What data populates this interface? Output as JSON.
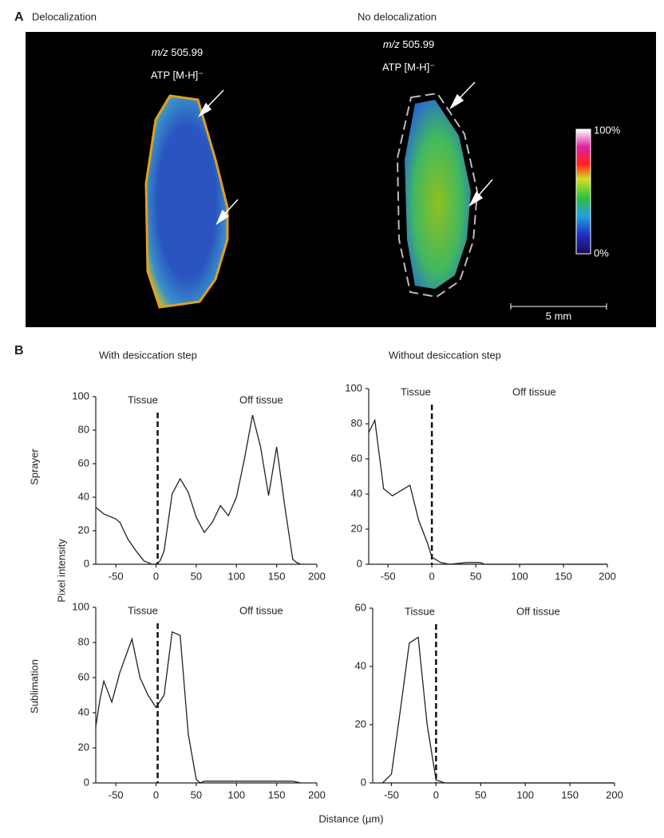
{
  "panel_a": {
    "label": "A",
    "left_title": "Delocalization",
    "right_title": "No delocalization",
    "left_ion": {
      "italic": "m/z",
      "text": "505.99",
      "species": "ATP [M-H]⁻"
    },
    "right_ion": {
      "italic": "m/z",
      "text": "505.99",
      "species": "ATP [M-H]⁻"
    },
    "colorbar": {
      "max_label": "100%",
      "min_label": "0%"
    },
    "scale_bar": "5 mm"
  },
  "panel_b": {
    "label": "B",
    "columns": [
      "With desiccation step",
      "Without desiccation step"
    ],
    "rows": [
      "Sprayer",
      "Sublimation"
    ],
    "y_label": "Pixel intensity",
    "x_label": "Distance (µm)"
  },
  "chart_data": [
    {
      "type": "line",
      "annotations": [
        "Tissue",
        "Off tissue"
      ],
      "vline": 2,
      "xlim": [
        -75,
        200
      ],
      "xticks": [
        -50,
        0,
        50,
        100,
        150,
        200
      ],
      "ylim": [
        0,
        100
      ],
      "yticks": [
        0,
        20,
        40,
        60,
        80,
        100
      ],
      "x": [
        -75,
        -65,
        -50,
        -45,
        -35,
        -25,
        -15,
        -5,
        0,
        5,
        10,
        20,
        30,
        40,
        50,
        60,
        70,
        80,
        90,
        100,
        110,
        120,
        130,
        140,
        150,
        160,
        170,
        175,
        180
      ],
      "series": [
        {
          "color": "#222222",
          "values": [
            34,
            30,
            27,
            25,
            15,
            8,
            2,
            0,
            0,
            2,
            8,
            42,
            51,
            43,
            28,
            19,
            25,
            35,
            29,
            40,
            63,
            89,
            70,
            41,
            70,
            35,
            3,
            1,
            0
          ]
        }
      ]
    },
    {
      "type": "line",
      "annotations": [
        "Tissue",
        "Off tissue"
      ],
      "vline": 0,
      "xlim": [
        -72,
        200
      ],
      "xticks": [
        -50,
        0,
        50,
        100,
        150,
        200
      ],
      "ylim": [
        0,
        100
      ],
      "yticks": [
        0,
        20,
        40,
        60,
        80,
        100
      ],
      "x": [
        -72,
        -65,
        -55,
        -45,
        -35,
        -25,
        -15,
        -5,
        0,
        10,
        20,
        40,
        55,
        60,
        200
      ],
      "series": [
        {
          "color": "#222222",
          "values": [
            75,
            82,
            43,
            39,
            42,
            45,
            25,
            12,
            4,
            1,
            0,
            1,
            1,
            0,
            0
          ]
        }
      ]
    },
    {
      "type": "line",
      "annotations": [
        "Tissue",
        "Off tissue"
      ],
      "vline": 2,
      "xlim": [
        -75,
        200
      ],
      "xticks": [
        -50,
        0,
        50,
        100,
        150,
        200
      ],
      "ylim": [
        0,
        100
      ],
      "yticks": [
        0,
        20,
        40,
        60,
        80,
        100
      ],
      "x": [
        -75,
        -70,
        -65,
        -55,
        -45,
        -30,
        -20,
        -10,
        0,
        10,
        20,
        30,
        40,
        50,
        55,
        60,
        170,
        180
      ],
      "series": [
        {
          "color": "#222222",
          "values": [
            32,
            47,
            58,
            46,
            63,
            82,
            60,
            50,
            43,
            50,
            86,
            84,
            28,
            2,
            0,
            1,
            1,
            0
          ]
        }
      ]
    },
    {
      "type": "line",
      "annotations": [
        "Tissue",
        "Off tissue"
      ],
      "vline": 0,
      "xlim": [
        -71,
        200
      ],
      "xticks": [
        -50,
        0,
        50,
        100,
        150,
        200
      ],
      "ylim": [
        0,
        60
      ],
      "yticks": [
        0,
        20,
        40,
        60
      ],
      "x": [
        -60,
        -50,
        -40,
        -30,
        -20,
        -10,
        0,
        10,
        200
      ],
      "series": [
        {
          "color": "#222222",
          "values": [
            0,
            3,
            25,
            48,
            50,
            20,
            1,
            0,
            0
          ]
        }
      ]
    }
  ]
}
